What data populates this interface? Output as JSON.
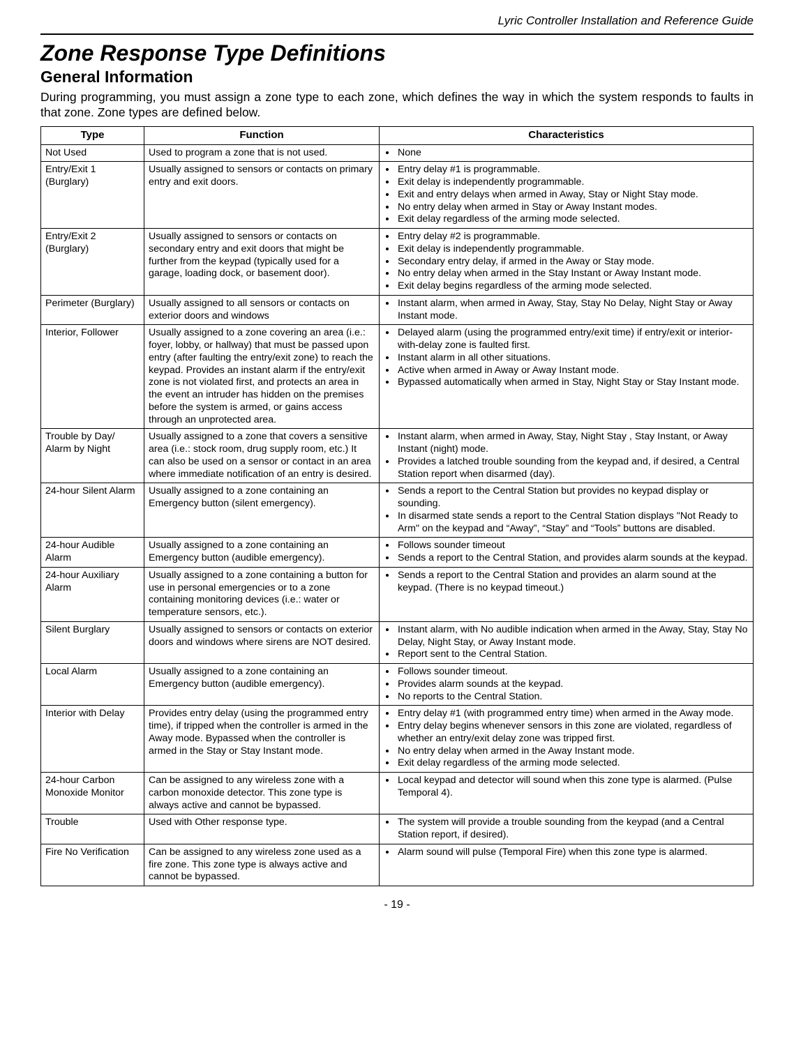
{
  "header": {
    "guide": "Lyric Controller Installation and Reference Guide"
  },
  "title": "Zone Response Type Definitions",
  "subtitle": "General Information",
  "intro": "During programming, you must assign a zone type to each zone, which defines the way in which the system responds to faults in that zone.  Zone types are defined below.",
  "columns": {
    "c1": "Type",
    "c2": "Function",
    "c3": "Characteristics"
  },
  "rows": [
    {
      "type": "Not Used",
      "func": "Used to program a zone that is not used.",
      "chars": [
        "None"
      ]
    },
    {
      "type": "Entry/Exit 1 (Burglary)",
      "func": "Usually assigned to sensors or contacts on primary entry and exit doors.",
      "chars": [
        "Entry delay #1 is programmable.",
        "Exit delay is independently programmable.",
        "Exit and entry delays when armed in Away, Stay or Night Stay mode.",
        "No entry delay when armed in Stay or Away Instant modes.",
        "Exit delay regardless of the arming mode selected."
      ]
    },
    {
      "type": "Entry/Exit 2 (Burglary)",
      "func": "Usually assigned to sensors or contacts on secondary entry and exit doors that might be further from the keypad (typically used for a garage, loading dock, or basement door).",
      "chars": [
        "Entry delay #2 is programmable.",
        "Exit delay is independently programmable.",
        "Secondary entry delay, if armed in the Away or Stay mode.",
        "No entry delay when armed in the Stay Instant or Away Instant mode.",
        "Exit delay begins regardless of the arming mode selected."
      ]
    },
    {
      "type": "Perimeter (Burglary)",
      "func": "Usually assigned to all sensors or contacts on exterior doors and windows",
      "chars": [
        "Instant alarm, when armed in Away, Stay, Stay No Delay, Night Stay or Away Instant mode."
      ]
    },
    {
      "type": "Interior, Follower",
      "func": "Usually assigned to a zone covering an area (i.e.: foyer, lobby, or hallway) that must be passed upon entry (after faulting the entry/exit zone) to reach the keypad. Provides an instant alarm if the entry/exit zone is not violated first, and protects an area in the event an intruder has hidden on the premises before the system is armed, or gains access through an unprotected area.",
      "chars": [
        "Delayed alarm (using the programmed entry/exit time) if entry/exit or interior-with-delay zone is faulted first.",
        "Instant alarm in all other situations.",
        "Active when armed in Away or Away Instant mode.",
        "Bypassed automatically when armed in Stay, Night Stay or Stay Instant mode."
      ]
    },
    {
      "type": "Trouble by Day/ Alarm by Night",
      "func": "Usually assigned to a zone that covers a sensitive area (i.e.: stock room, drug supply room, etc.) It can also be used on a sensor or contact in an area where immediate notification of an entry is desired.",
      "chars": [
        "Instant alarm, when armed in Away, Stay, Night Stay , Stay Instant, or Away Instant (night) mode.",
        "Provides a latched trouble sounding from the keypad and, if desired, a Central Station report when disarmed (day)."
      ]
    },
    {
      "type": "24-hour  Silent Alarm",
      "func": "Usually assigned to a zone containing an Emergency button (silent emergency).",
      "chars": [
        "Sends a report to the Central Station but provides no keypad display or sounding.",
        "In disarmed state sends a report to the Central Station displays \"Not Ready to Arm\" on the keypad and “Away”, “Stay” and “Tools” buttons are disabled."
      ]
    },
    {
      "type": "24-hour  Audible Alarm",
      "func": "Usually assigned to a zone containing an Emergency button (audible emergency).",
      "chars": [
        "Follows sounder timeout",
        "Sends a report to the Central Station, and provides alarm sounds at the keypad."
      ]
    },
    {
      "type": "24-hour Auxiliary Alarm",
      "func": "Usually assigned to a zone containing a button for use in personal emergencies or to a zone containing monitoring devices (i.e.: water or temperature sensors, etc.).",
      "func_justify": true,
      "chars": [
        "Sends a report to the Central Station and provides an alarm sound at the keypad. (There is no keypad timeout.)"
      ]
    },
    {
      "type": "Silent Burglary",
      "func": "Usually assigned to sensors or contacts on exterior doors and windows where sirens are NOT desired.",
      "chars": [
        "Instant alarm, with No audible indication when armed in the Away, Stay, Stay No Delay, Night Stay, or Away Instant mode.",
        "Report sent to the Central Station."
      ]
    },
    {
      "type": "Local Alarm",
      "func": "Usually assigned to a zone containing an Emergency button (audible emergency).",
      "chars": [
        "Follows sounder timeout.",
        "Provides alarm sounds at the keypad.",
        "No reports to the Central Station."
      ]
    },
    {
      "type": "Interior with Delay",
      "func": "Provides entry delay (using the programmed entry time), if tripped when the controller is armed in the Away mode. Bypassed when the controller is armed in the Stay or Stay Instant mode.",
      "func_justify": true,
      "chars": [
        "Entry delay #1 (with programmed entry time) when armed in the Away mode.",
        "Entry delay begins whenever sensors in this zone are violated, regardless of whether an entry/exit delay zone was tripped first.",
        "No entry delay when armed in the Away Instant mode.",
        "Exit delay regardless of the arming mode selected."
      ]
    },
    {
      "type": "24-hour Carbon Monoxide Monitor",
      "func": "Can be assigned to any wireless zone with a carbon monoxide detector. This zone type is always active and cannot be bypassed.",
      "chars": [
        "Local keypad and detector will sound when this zone type is alarmed. (Pulse Temporal 4)."
      ]
    },
    {
      "type": "Trouble",
      "func": "Used with Other response type.",
      "chars": [
        "The system will provide a trouble sounding from the keypad (and a Central Station report, if desired)."
      ]
    },
    {
      "type": "Fire No Verification",
      "func": "Can be assigned to any wireless zone used as a fire zone. This zone type is always active and cannot be bypassed.",
      "func_justify": true,
      "chars": [
        "Alarm sound will pulse (Temporal Fire) when this zone type is alarmed."
      ]
    }
  ],
  "footer": "- 19 -"
}
